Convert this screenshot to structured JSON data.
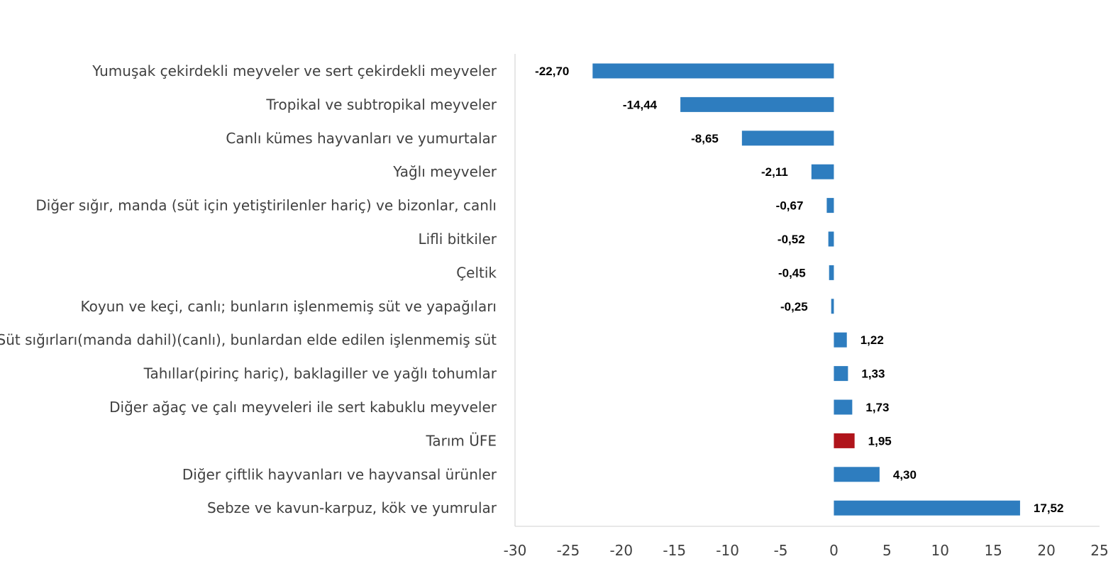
{
  "chart_data": {
    "type": "bar",
    "orientation": "horizontal",
    "title": "",
    "xlabel": "",
    "ylabel": "",
    "xlim": [
      -30,
      25
    ],
    "x_ticks": [
      -30,
      -25,
      -20,
      -15,
      -10,
      -5,
      0,
      5,
      10,
      15,
      20,
      25
    ],
    "grid": false,
    "categories": [
      "Yumuşak çekirdekli meyveler ve sert çekirdekli meyveler",
      "Tropikal ve subtropikal meyveler",
      "Canlı kümes hayvanları ve yumurtalar",
      "Yağlı meyveler",
      "Diğer sığır, manda (süt için yetiştirilenler hariç) ve bizonlar, canlı",
      "Lifli bitkiler",
      "Çeltik",
      "Koyun ve keçi, canlı; bunların işlenmemiş süt ve yapağıları",
      "Süt sığırları(manda dahil)(canlı), bunlardan elde edilen işlenmemiş süt",
      "Tahıllar(pirinç hariç), baklagiller ve yağlı tohumlar",
      "Diğer ağaç ve çalı meyveleri ile sert kabuklu meyveler",
      "Tarım ÜFE",
      "Diğer çiftlik hayvanları ve hayvansal ürünler",
      "Sebze ve kavun-karpuz, kök ve yumrular"
    ],
    "values": [
      -22.7,
      -14.44,
      -8.65,
      -2.11,
      -0.67,
      -0.52,
      -0.45,
      -0.25,
      1.22,
      1.33,
      1.73,
      1.95,
      4.3,
      17.52
    ],
    "value_labels": [
      "-22,70",
      "-14,44",
      "-8,65",
      "-2,11",
      "-0,67",
      "-0,52",
      "-0,45",
      "-0,25",
      "1,22",
      "1,33",
      "1,73",
      "1,95",
      "4,30",
      "17,52"
    ],
    "colors": {
      "default_bar": "#2E7DBF",
      "highlight_bar": "#B0141B",
      "axis": "#D9D9D9"
    },
    "highlight_category": "Tarım ÜFE"
  }
}
